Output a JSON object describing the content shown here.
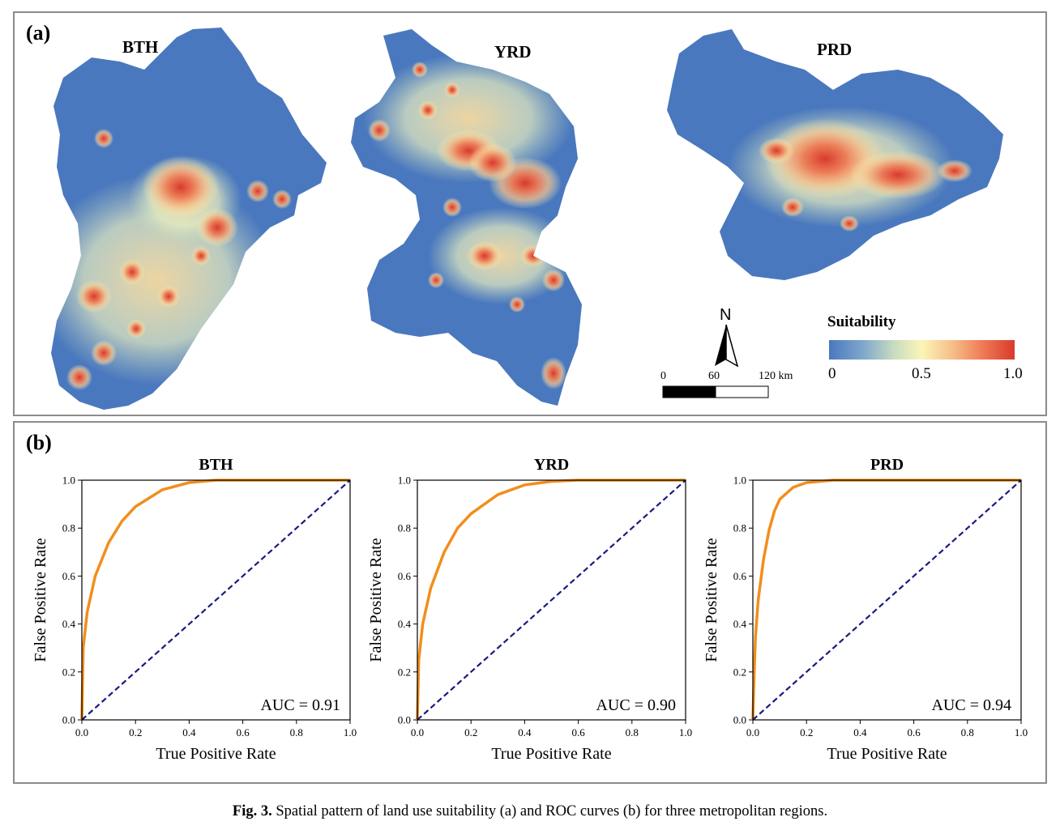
{
  "panel_a": {
    "label": "(a)",
    "maps": [
      {
        "title": "BTH"
      },
      {
        "title": "YRD"
      },
      {
        "title": "PRD"
      }
    ],
    "north_label": "N",
    "scale_bar": {
      "tick_0": "0",
      "tick_1": "60",
      "tick_2": "120 km"
    },
    "legend": {
      "title": "Suitability",
      "tick_0": "0",
      "tick_1": "0.5",
      "tick_2": "1.0",
      "colors": [
        "#4a78be",
        "#7ea6cc",
        "#c8dcc0",
        "#fbf5b8",
        "#f6c08a",
        "#ee7a55",
        "#d83a2c"
      ]
    }
  },
  "panel_b": {
    "label": "(b)"
  },
  "chart_data": [
    {
      "type": "line",
      "title": "BTH",
      "xlabel": "True Positive Rate",
      "ylabel": "False Positive Rate",
      "xlim": [
        0,
        1
      ],
      "ylim": [
        0,
        1
      ],
      "xticks": [
        "0.0",
        "0.2",
        "0.4",
        "0.6",
        "0.8",
        "1.0"
      ],
      "yticks": [
        "0.0",
        "0.2",
        "0.4",
        "0.6",
        "0.8",
        "1.0"
      ],
      "annotation": "AUC = 0.91",
      "series": [
        {
          "name": "ROC",
          "color": "#f28e1c",
          "x": [
            0,
            0.005,
            0.02,
            0.05,
            0.1,
            0.15,
            0.2,
            0.3,
            0.4,
            0.5,
            0.6,
            0.8,
            1.0
          ],
          "y": [
            0,
            0.3,
            0.45,
            0.6,
            0.74,
            0.83,
            0.89,
            0.96,
            0.99,
            1.0,
            1.0,
            1.0,
            1.0
          ]
        },
        {
          "name": "Chance",
          "color": "#1a1a80",
          "x": [
            0,
            1
          ],
          "y": [
            0,
            1
          ]
        }
      ]
    },
    {
      "type": "line",
      "title": "YRD",
      "xlabel": "True Positive Rate",
      "ylabel": "False Positive Rate",
      "xlim": [
        0,
        1
      ],
      "ylim": [
        0,
        1
      ],
      "xticks": [
        "0.0",
        "0.2",
        "0.4",
        "0.6",
        "0.8",
        "1.0"
      ],
      "yticks": [
        "0.0",
        "0.2",
        "0.4",
        "0.6",
        "0.8",
        "1.0"
      ],
      "annotation": "AUC = 0.90",
      "series": [
        {
          "name": "ROC",
          "color": "#f28e1c",
          "x": [
            0,
            0.005,
            0.02,
            0.05,
            0.1,
            0.15,
            0.2,
            0.3,
            0.4,
            0.5,
            0.6,
            0.8,
            1.0
          ],
          "y": [
            0,
            0.25,
            0.4,
            0.55,
            0.7,
            0.8,
            0.86,
            0.94,
            0.98,
            0.995,
            1.0,
            1.0,
            1.0
          ]
        },
        {
          "name": "Chance",
          "color": "#1a1a80",
          "x": [
            0,
            1
          ],
          "y": [
            0,
            1
          ]
        }
      ]
    },
    {
      "type": "line",
      "title": "PRD",
      "xlabel": "True Positive Rate",
      "ylabel": "False Positive Rate",
      "xlim": [
        0,
        1
      ],
      "ylim": [
        0,
        1
      ],
      "xticks": [
        "0.0",
        "0.2",
        "0.4",
        "0.6",
        "0.8",
        "1.0"
      ],
      "yticks": [
        "0.0",
        "0.2",
        "0.4",
        "0.6",
        "0.8",
        "1.0"
      ],
      "annotation": "AUC = 0.94",
      "series": [
        {
          "name": "ROC",
          "color": "#f28e1c",
          "x": [
            0,
            0.005,
            0.01,
            0.02,
            0.04,
            0.06,
            0.08,
            0.1,
            0.15,
            0.2,
            0.3,
            0.5,
            1.0
          ],
          "y": [
            0,
            0.2,
            0.35,
            0.5,
            0.67,
            0.79,
            0.87,
            0.92,
            0.97,
            0.99,
            1.0,
            1.0,
            1.0
          ]
        },
        {
          "name": "Chance",
          "color": "#1a1a80",
          "x": [
            0,
            1
          ],
          "y": [
            0,
            1
          ]
        }
      ]
    }
  ],
  "caption": {
    "prefix": "Fig. 3.",
    "text": "Spatial pattern of land use suitability (a) and ROC curves (b) for three metropolitan regions."
  }
}
